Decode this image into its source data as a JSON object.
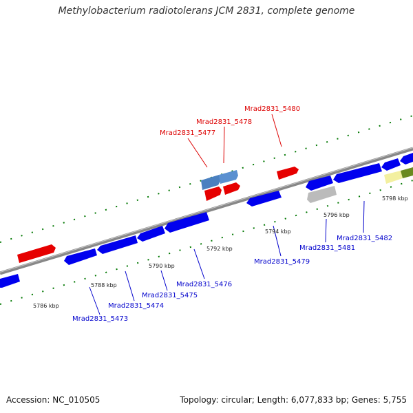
{
  "title": "Methylobacterium radiotolerans JCM 2831, complete genome",
  "footer": {
    "accession": "Accession: NC_010505",
    "summary": "Topology: circular; Length: 6,077,833 bp; Genes: 5,755"
  },
  "colors": {
    "forward_gene": "#e60000",
    "reverse_gene": "#0000ee",
    "steelblue_gene": "#4a80c0",
    "gray_gene": "#bbbbbb",
    "yellow_gene": "#f3f0a0",
    "olive_gene": "#6a8a20",
    "backbone": "#888888",
    "tick": "#007700"
  },
  "position_labels": [
    "5786 kbp",
    "5788 kbp",
    "5790 kbp",
    "5792 kbp",
    "5794 kbp",
    "5796 kbp",
    "5798 kbp"
  ],
  "gene_labels": {
    "top": [
      "Mrad2831_5477",
      "Mrad2831_5478",
      "Mrad2831_5480"
    ],
    "bottom": [
      "Mrad2831_5473",
      "Mrad2831_5474",
      "Mrad2831_5475",
      "Mrad2831_5476",
      "Mrad2831_5479",
      "Mrad2831_5481",
      "Mrad2831_5482"
    ]
  }
}
